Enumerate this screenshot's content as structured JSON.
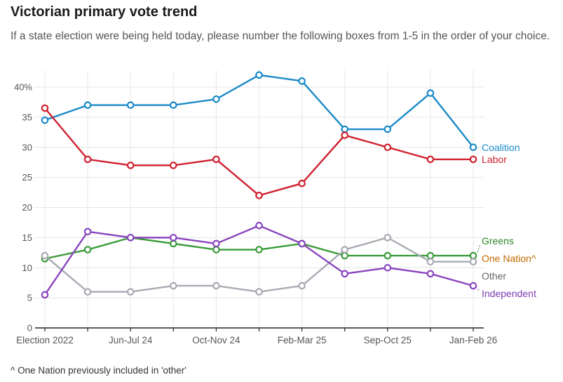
{
  "header": {
    "title": "Victorian primary vote trend",
    "subtitle": "If a state election were being held today, please number the following boxes from 1-5 in the order of your choice."
  },
  "footnote": "^ One Nation previously included in 'other'",
  "chart_data": {
    "type": "line",
    "title": "Victorian primary vote trend",
    "subtitle": "If a state election were being held today, please number the following boxes from 1-5 in the order of your choice.",
    "x_tick_labels": [
      "Election 2022",
      "Jun-Jul 24",
      "Oct-Nov 24",
      "Feb-Mar 25",
      "Sep-Oct 25",
      "Jan-Feb 26"
    ],
    "x_tick_index": [
      0,
      2,
      4,
      6,
      8,
      10
    ],
    "n_points": 11,
    "ylim": [
      0,
      40
    ],
    "yticks": [
      0,
      5,
      10,
      15,
      20,
      25,
      30,
      35,
      40
    ],
    "ytick_labels": [
      "0",
      "5",
      "10",
      "15",
      "20",
      "25",
      "30",
      "35",
      "40%"
    ],
    "grid": true,
    "legend": "end-of-line labels",
    "series": [
      {
        "name": "Coalition",
        "color": "#1b8ac8",
        "values": [
          34.5,
          37,
          37,
          37,
          38,
          42,
          41,
          33,
          33,
          39,
          30
        ]
      },
      {
        "name": "Labor",
        "color": "#d0202f",
        "values": [
          36.5,
          28,
          27,
          27,
          28,
          22,
          24,
          32,
          30,
          28,
          28
        ]
      },
      {
        "name": "Greens",
        "color": "#3a9b3a",
        "values": [
          11.5,
          13,
          15,
          14,
          13,
          13,
          14,
          12,
          12,
          12,
          12
        ]
      },
      {
        "name": "One Nation^",
        "color": "#e39a1b",
        "values": [
          null,
          null,
          null,
          null,
          null,
          null,
          null,
          null,
          null,
          null,
          11
        ]
      },
      {
        "name": "Other",
        "color": "#a9abb3",
        "values": [
          12,
          6,
          6,
          7,
          7,
          6,
          7,
          13,
          15,
          11,
          11
        ]
      },
      {
        "name": "Independent",
        "color": "#8a45bf",
        "values": [
          5.5,
          16,
          15,
          15,
          14,
          17,
          14,
          9,
          10,
          9,
          7
        ]
      }
    ],
    "label_colors": {
      "Greens": "#2e8a2e",
      "One Nation^": "#c26a00",
      "Other": "#666666",
      "Independent": "#7a3bb3"
    }
  }
}
